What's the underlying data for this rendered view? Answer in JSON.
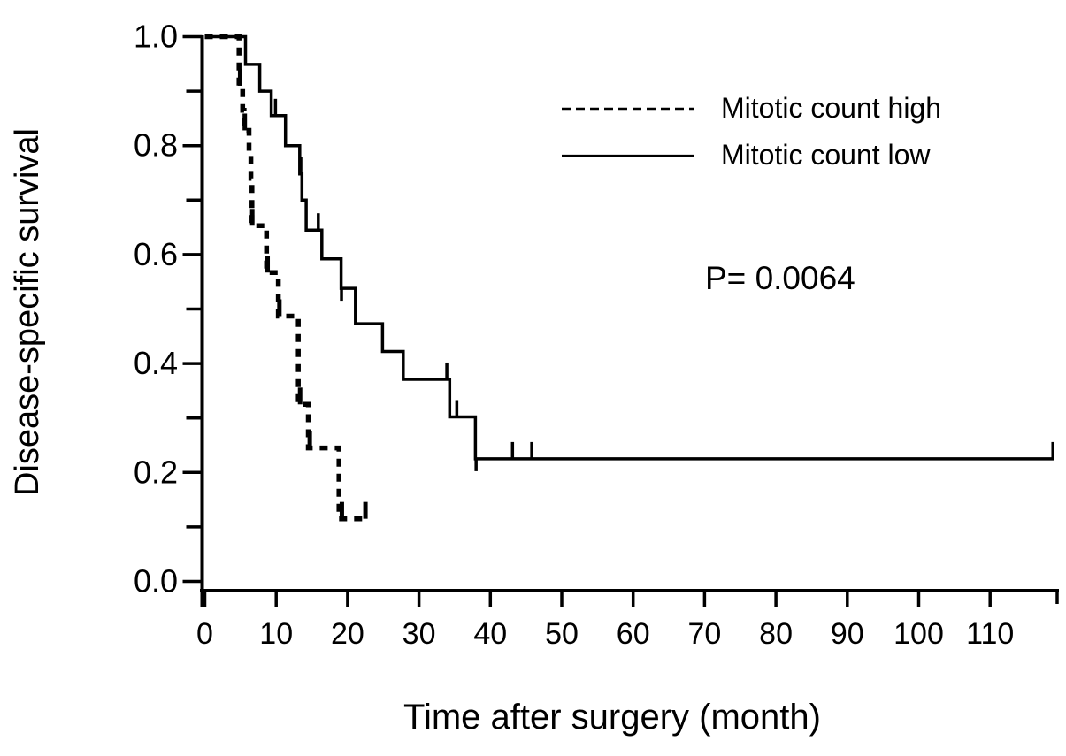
{
  "figure": {
    "y_axis_title": "Disease-specific survival",
    "x_axis_title": "Time after surgery (month)",
    "p_value_text": "P= 0.0064"
  },
  "legend": {
    "items": [
      {
        "label": "Mitotic count high",
        "style": "dashed"
      },
      {
        "label": "Mitotic count low",
        "style": "solid"
      }
    ]
  },
  "chart_data": {
    "type": "line",
    "subtype": "kaplan_meier_step",
    "title": "",
    "xlabel": "Time after surgery (month)",
    "ylabel": "Disease-specific survival",
    "xlim": [
      0,
      119
    ],
    "ylim": [
      0,
      1.0
    ],
    "grid": false,
    "legend_position": "upper-right-inside",
    "line_color": "#000000",
    "background_color": "#ffffff",
    "x_ticks": [
      0,
      10,
      20,
      30,
      40,
      50,
      60,
      70,
      80,
      90,
      100,
      110
    ],
    "x_tick_labels": [
      "0",
      "10",
      "20",
      "30",
      "40",
      "50",
      "60",
      "70",
      "80",
      "90",
      "100",
      "110"
    ],
    "y_ticks": [
      0,
      0.1,
      0.2,
      0.3,
      0.4,
      0.5,
      0.6,
      0.7,
      0.8,
      0.9,
      1.0
    ],
    "y_tick_labels": [
      "0.0",
      "",
      "0.2",
      "",
      "0.4",
      "",
      "0.6",
      "",
      "0.8",
      "",
      "1.0"
    ],
    "p_value": 0.0064,
    "series": [
      {
        "name": "Mitotic count high",
        "style": "dashed",
        "points": [
          [
            0,
            1.0
          ],
          [
            4.8,
            1.0
          ],
          [
            4.8,
            0.91
          ],
          [
            5.3,
            0.91
          ],
          [
            5.3,
            0.865
          ],
          [
            5.5,
            0.865
          ],
          [
            5.5,
            0.828
          ],
          [
            6.2,
            0.828
          ],
          [
            6.2,
            0.785
          ],
          [
            6.45,
            0.785
          ],
          [
            6.45,
            0.74
          ],
          [
            6.6,
            0.74
          ],
          [
            6.6,
            0.653
          ],
          [
            8.65,
            0.653
          ],
          [
            8.65,
            0.567
          ],
          [
            10.3,
            0.567
          ],
          [
            10.3,
            0.487
          ],
          [
            13.1,
            0.487
          ],
          [
            13.1,
            0.325
          ],
          [
            14.5,
            0.325
          ],
          [
            14.5,
            0.245
          ],
          [
            18.8,
            0.245
          ],
          [
            18.8,
            0.115
          ],
          [
            23.0,
            0.115
          ]
        ],
        "censors": [
          [
            4.95,
            0.91
          ],
          [
            5.6,
            0.828
          ],
          [
            6.65,
            0.653
          ],
          [
            8.8,
            0.567
          ],
          [
            10.45,
            0.487
          ],
          [
            13.35,
            0.325
          ],
          [
            14.7,
            0.245
          ],
          [
            19.2,
            0.115
          ],
          [
            22.5,
            0.115
          ]
        ]
      },
      {
        "name": "Mitotic count low",
        "style": "solid",
        "points": [
          [
            0,
            1.0
          ],
          [
            5.7,
            1.0
          ],
          [
            5.7,
            0.949
          ],
          [
            7.7,
            0.949
          ],
          [
            7.7,
            0.9
          ],
          [
            9.3,
            0.9
          ],
          [
            9.3,
            0.855
          ],
          [
            11.3,
            0.855
          ],
          [
            11.3,
            0.8
          ],
          [
            13.3,
            0.8
          ],
          [
            13.3,
            0.748
          ],
          [
            13.6,
            0.748
          ],
          [
            13.6,
            0.7
          ],
          [
            14.2,
            0.7
          ],
          [
            14.2,
            0.645
          ],
          [
            16.4,
            0.645
          ],
          [
            16.4,
            0.592
          ],
          [
            19.1,
            0.592
          ],
          [
            19.1,
            0.538
          ],
          [
            21.1,
            0.538
          ],
          [
            21.1,
            0.473
          ],
          [
            24.9,
            0.473
          ],
          [
            24.9,
            0.422
          ],
          [
            27.8,
            0.422
          ],
          [
            27.8,
            0.371
          ],
          [
            34.3,
            0.371
          ],
          [
            34.3,
            0.302
          ],
          [
            37.9,
            0.302
          ],
          [
            37.9,
            0.225
          ],
          [
            119,
            0.225
          ]
        ],
        "censors": [
          [
            9.9,
            0.855
          ],
          [
            13.45,
            0.748
          ],
          [
            15.9,
            0.645
          ],
          [
            19.15,
            0.538,
            "down"
          ],
          [
            33.9,
            0.371
          ],
          [
            35.3,
            0.302
          ],
          [
            38.0,
            0.225,
            "down"
          ],
          [
            43.1,
            0.225
          ],
          [
            45.8,
            0.225
          ],
          [
            118.8,
            0.225
          ]
        ]
      }
    ]
  }
}
